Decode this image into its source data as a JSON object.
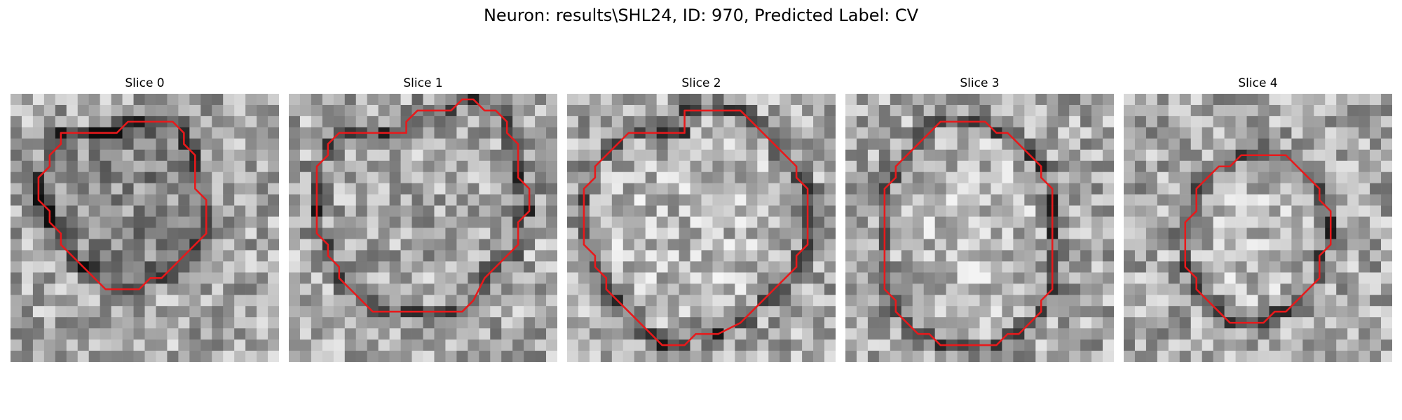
{
  "figure": {
    "title": "Neuron: results\\SHL24, ID: 970, Predicted Label: CV"
  },
  "slices": [
    {
      "title": "Slice 0",
      "contour": [
        [
          10.5,
          2.5
        ],
        [
          14.5,
          2.5
        ],
        [
          15.5,
          3.5
        ],
        [
          15.5,
          4.5
        ],
        [
          16.5,
          5.5
        ],
        [
          16.5,
          8.5
        ],
        [
          17.5,
          9.5
        ],
        [
          17.5,
          12.5
        ],
        [
          16.5,
          13.5
        ],
        [
          15.5,
          14.5
        ],
        [
          14.5,
          15.5
        ],
        [
          13.5,
          16.5
        ],
        [
          12.5,
          16.5
        ],
        [
          11.5,
          17.5
        ],
        [
          8.5,
          17.5
        ],
        [
          7.5,
          16.5
        ],
        [
          6.5,
          15.5
        ],
        [
          5.5,
          14.5
        ],
        [
          4.5,
          13.5
        ],
        [
          4.5,
          12.5
        ],
        [
          3.5,
          11.5
        ],
        [
          3.5,
          10.5
        ],
        [
          2.5,
          9.5
        ],
        [
          2.5,
          7.5
        ],
        [
          3.5,
          6.5
        ],
        [
          3.5,
          5.5
        ],
        [
          4.5,
          4.5
        ],
        [
          4.5,
          3.5
        ],
        [
          5.5,
          3.5
        ],
        [
          9.5,
          3.5
        ]
      ]
    },
    {
      "title": "Slice 1",
      "contour": [
        [
          11.5,
          1.5
        ],
        [
          14.5,
          1.5
        ],
        [
          15.5,
          0.5
        ],
        [
          16.5,
          0.5
        ],
        [
          17.5,
          1.5
        ],
        [
          18.5,
          1.5
        ],
        [
          19.5,
          2.5
        ],
        [
          19.5,
          3.5
        ],
        [
          20.5,
          4.5
        ],
        [
          20.5,
          7.5
        ],
        [
          21.5,
          8.5
        ],
        [
          21.5,
          10.5
        ],
        [
          20.5,
          11.5
        ],
        [
          20.5,
          13.5
        ],
        [
          19.5,
          14.5
        ],
        [
          18.5,
          15.5
        ],
        [
          17.5,
          16.5
        ],
        [
          16.5,
          18.5
        ],
        [
          15.5,
          19.5
        ],
        [
          7.5,
          19.5
        ],
        [
          6.5,
          18.5
        ],
        [
          5.5,
          17.5
        ],
        [
          4.5,
          16.5
        ],
        [
          4.5,
          15.5
        ],
        [
          3.5,
          14.5
        ],
        [
          3.5,
          13.5
        ],
        [
          2.5,
          12.5
        ],
        [
          2.5,
          6.5
        ],
        [
          3.5,
          5.5
        ],
        [
          3.5,
          4.5
        ],
        [
          4.5,
          3.5
        ],
        [
          10.5,
          3.5
        ],
        [
          10.5,
          2.5
        ]
      ]
    },
    {
      "title": "Slice 2",
      "contour": [
        [
          10.5,
          1.5
        ],
        [
          15.5,
          1.5
        ],
        [
          16.5,
          2.5
        ],
        [
          17.5,
          3.5
        ],
        [
          18.5,
          4.5
        ],
        [
          19.5,
          5.5
        ],
        [
          20.5,
          6.5
        ],
        [
          20.5,
          7.5
        ],
        [
          21.5,
          8.5
        ],
        [
          21.5,
          13.5
        ],
        [
          20.5,
          14.5
        ],
        [
          20.5,
          15.5
        ],
        [
          19.5,
          16.5
        ],
        [
          18.5,
          17.5
        ],
        [
          17.5,
          18.5
        ],
        [
          16.5,
          19.5
        ],
        [
          15.5,
          20.5
        ],
        [
          13.5,
          21.5
        ],
        [
          11.5,
          21.5
        ],
        [
          10.5,
          22.5
        ],
        [
          8.5,
          22.5
        ],
        [
          7.5,
          21.5
        ],
        [
          6.5,
          20.5
        ],
        [
          5.5,
          19.5
        ],
        [
          4.5,
          18.5
        ],
        [
          3.5,
          17.5
        ],
        [
          3.5,
          16.5
        ],
        [
          2.5,
          15.5
        ],
        [
          2.5,
          14.5
        ],
        [
          1.5,
          13.5
        ],
        [
          1.5,
          8.5
        ],
        [
          2.5,
          7.5
        ],
        [
          2.5,
          6.5
        ],
        [
          3.5,
          5.5
        ],
        [
          4.5,
          4.5
        ],
        [
          5.5,
          3.5
        ],
        [
          10.5,
          3.5
        ]
      ]
    },
    {
      "title": "Slice 3",
      "contour": [
        [
          8.5,
          2.5
        ],
        [
          12.5,
          2.5
        ],
        [
          13.5,
          3.5
        ],
        [
          14.5,
          3.5
        ],
        [
          15.5,
          4.5
        ],
        [
          16.5,
          5.5
        ],
        [
          17.5,
          6.5
        ],
        [
          17.5,
          7.5
        ],
        [
          18.5,
          8.5
        ],
        [
          18.5,
          17.5
        ],
        [
          17.5,
          18.5
        ],
        [
          17.5,
          19.5
        ],
        [
          16.5,
          20.5
        ],
        [
          15.5,
          21.5
        ],
        [
          14.5,
          21.5
        ],
        [
          13.5,
          22.5
        ],
        [
          8.5,
          22.5
        ],
        [
          7.5,
          21.5
        ],
        [
          6.5,
          21.5
        ],
        [
          5.5,
          20.5
        ],
        [
          4.5,
          19.5
        ],
        [
          4.5,
          18.5
        ],
        [
          3.5,
          17.5
        ],
        [
          3.5,
          8.5
        ],
        [
          4.5,
          7.5
        ],
        [
          4.5,
          6.5
        ],
        [
          5.5,
          5.5
        ],
        [
          6.5,
          4.5
        ],
        [
          7.5,
          3.5
        ]
      ]
    },
    {
      "title": "Slice 4",
      "contour": [
        [
          10.5,
          5.5
        ],
        [
          14.5,
          5.5
        ],
        [
          15.5,
          6.5
        ],
        [
          16.5,
          7.5
        ],
        [
          17.5,
          8.5
        ],
        [
          17.5,
          9.5
        ],
        [
          18.5,
          10.5
        ],
        [
          18.5,
          13.5
        ],
        [
          17.5,
          14.5
        ],
        [
          17.5,
          16.5
        ],
        [
          16.5,
          17.5
        ],
        [
          15.5,
          18.5
        ],
        [
          14.5,
          19.5
        ],
        [
          13.5,
          19.5
        ],
        [
          12.5,
          20.5
        ],
        [
          9.5,
          20.5
        ],
        [
          8.5,
          19.5
        ],
        [
          7.5,
          18.5
        ],
        [
          6.5,
          17.5
        ],
        [
          6.5,
          16.5
        ],
        [
          5.5,
          15.5
        ],
        [
          5.5,
          11.5
        ],
        [
          6.5,
          10.5
        ],
        [
          6.5,
          8.5
        ],
        [
          7.5,
          7.5
        ],
        [
          8.5,
          6.5
        ],
        [
          9.5,
          6.5
        ]
      ]
    }
  ]
}
